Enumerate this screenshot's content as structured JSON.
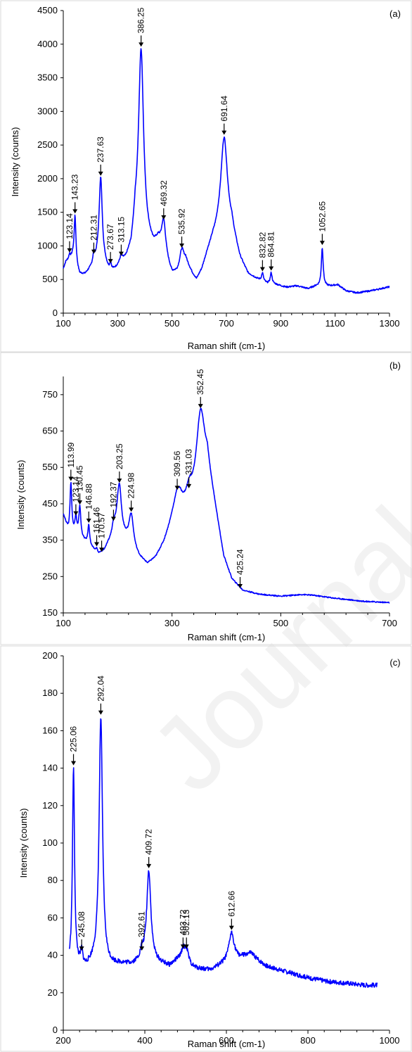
{
  "watermark": "Journal Pre-proof",
  "colors": {
    "series": "#0000ff",
    "axis": "#000000",
    "frame": "#d9d9d9"
  },
  "chart_data": [
    {
      "type": "line",
      "panel": "(a)",
      "xlabel": "Raman shift (cm-1)",
      "ylabel": "Intensity (counts)",
      "xlim": [
        100,
        1300
      ],
      "ylim": [
        0,
        4500
      ],
      "xticks": [
        100,
        300,
        500,
        700,
        900,
        1100,
        1300
      ],
      "yticks": [
        0,
        500,
        1000,
        1500,
        2000,
        2500,
        3000,
        3500,
        4000,
        4500
      ],
      "grid": false,
      "baseline": [
        [
          100,
          650
        ],
        [
          110,
          760
        ],
        [
          135,
          820
        ],
        [
          160,
          560
        ],
        [
          180,
          560
        ],
        [
          200,
          640
        ],
        [
          215,
          700
        ],
        [
          225,
          760
        ],
        [
          255,
          680
        ],
        [
          272,
          560
        ],
        [
          295,
          640
        ],
        [
          310,
          720
        ],
        [
          330,
          760
        ],
        [
          350,
          900
        ],
        [
          365,
          1300
        ],
        [
          410,
          1050
        ],
        [
          430,
          960
        ],
        [
          450,
          1030
        ],
        [
          500,
          560
        ],
        [
          520,
          580
        ],
        [
          550,
          760
        ],
        [
          575,
          560
        ],
        [
          590,
          470
        ],
        [
          610,
          620
        ],
        [
          630,
          870
        ],
        [
          650,
          1060
        ],
        [
          670,
          1160
        ],
        [
          720,
          1200
        ],
        [
          750,
          780
        ],
        [
          780,
          560
        ],
        [
          810,
          500
        ],
        [
          850,
          430
        ],
        [
          880,
          420
        ],
        [
          920,
          380
        ],
        [
          960,
          400
        ],
        [
          1000,
          360
        ],
        [
          1030,
          400
        ],
        [
          1080,
          400
        ],
        [
          1110,
          420
        ],
        [
          1140,
          330
        ],
        [
          1180,
          300
        ],
        [
          1230,
          330
        ],
        [
          1300,
          390
        ]
      ],
      "peaks": [
        {
          "label": "123.14",
          "x": 123.14,
          "y": 860,
          "w": 3
        },
        {
          "label": "143.23",
          "x": 143.23,
          "y": 1440,
          "w": 4
        },
        {
          "label": "212.31",
          "x": 212.31,
          "y": 840,
          "w": 4
        },
        {
          "label": "237.63",
          "x": 237.63,
          "y": 2000,
          "w": 7
        },
        {
          "label": "273.67",
          "x": 273.67,
          "y": 700,
          "w": 4
        },
        {
          "label": "313.15",
          "x": 313.15,
          "y": 810,
          "w": 4
        },
        {
          "label": "386.25",
          "x": 386.25,
          "y": 3920,
          "w": 11
        },
        {
          "label": "469.32",
          "x": 469.32,
          "y": 1350,
          "w": 9
        },
        {
          "label": "535.92",
          "x": 535.92,
          "y": 930,
          "w": 9
        },
        {
          "label": "691.64",
          "x": 691.64,
          "y": 2610,
          "w": 15
        },
        {
          "label": "832.82",
          "x": 832.82,
          "y": 580,
          "w": 4
        },
        {
          "label": "864.81",
          "x": 864.81,
          "y": 590,
          "w": 4
        },
        {
          "label": "1052.65",
          "x": 1052.65,
          "y": 970,
          "w": 4
        }
      ]
    },
    {
      "type": "line",
      "panel": "(b)",
      "xlabel": "Raman shift (cm-1)",
      "ylabel": "Intensity (counts)",
      "xlim": [
        100,
        700
      ],
      "ylim": [
        150,
        800
      ],
      "xticks": [
        100,
        300,
        500,
        700
      ],
      "yticks": [
        150,
        250,
        350,
        450,
        550,
        650,
        750
      ],
      "grid": false,
      "baseline": [
        [
          100,
          420
        ],
        [
          110,
          370
        ],
        [
          130,
          360
        ],
        [
          150,
          330
        ],
        [
          165,
          310
        ],
        [
          175,
          320
        ],
        [
          190,
          360
        ],
        [
          200,
          400
        ],
        [
          212,
          360
        ],
        [
          224,
          330
        ],
        [
          240,
          300
        ],
        [
          255,
          282
        ],
        [
          270,
          300
        ],
        [
          285,
          340
        ],
        [
          300,
          400
        ],
        [
          315,
          440
        ],
        [
          330,
          430
        ],
        [
          345,
          480
        ],
        [
          365,
          550
        ],
        [
          380,
          430
        ],
        [
          395,
          300
        ],
        [
          410,
          240
        ],
        [
          430,
          210
        ],
        [
          460,
          200
        ],
        [
          500,
          195
        ],
        [
          540,
          200
        ],
        [
          560,
          198
        ],
        [
          600,
          190
        ],
        [
          650,
          182
        ],
        [
          700,
          178
        ]
      ],
      "peaks": [
        {
          "label": "113.99",
          "x": 113.99,
          "y": 505,
          "w": 2
        },
        {
          "label": "123.14",
          "x": 123.14,
          "y": 410,
          "w": 2
        },
        {
          "label": "130.45",
          "x": 130.45,
          "y": 440,
          "w": 2
        },
        {
          "label": "146.88",
          "x": 146.88,
          "y": 390,
          "w": 2
        },
        {
          "label": "161.46",
          "x": 161.46,
          "y": 325,
          "w": 2
        },
        {
          "label": "170.57",
          "x": 170.57,
          "y": 310,
          "w": 2
        },
        {
          "label": "192.37",
          "x": 192.37,
          "y": 395,
          "w": 3
        },
        {
          "label": "203.25",
          "x": 203.25,
          "y": 500,
          "w": 4
        },
        {
          "label": "224.98",
          "x": 224.98,
          "y": 420,
          "w": 5
        },
        {
          "label": "309.56",
          "x": 309.56,
          "y": 480,
          "w": 8
        },
        {
          "label": "331.03",
          "x": 331.03,
          "y": 485,
          "w": 6
        },
        {
          "label": "352.45",
          "x": 352.45,
          "y": 705,
          "w": 9
        },
        {
          "label": "425.24",
          "x": 425.24,
          "y": 210,
          "w": 4
        }
      ]
    },
    {
      "type": "line",
      "panel": "(c)",
      "xlabel": "Raman shift (cm-1)",
      "ylabel": "Intensity (counts)",
      "xlim": [
        200,
        1000
      ],
      "ylim": [
        0,
        200
      ],
      "xticks": [
        200,
        400,
        600,
        800,
        1000
      ],
      "yticks": [
        0,
        20,
        40,
        60,
        80,
        100,
        120,
        140,
        160,
        180,
        200
      ],
      "grid": false,
      "baseline": [
        [
          215,
          34
        ],
        [
          235,
          34
        ],
        [
          255,
          33
        ],
        [
          275,
          36
        ],
        [
          310,
          34
        ],
        [
          340,
          35
        ],
        [
          370,
          35
        ],
        [
          400,
          38
        ],
        [
          430,
          36
        ],
        [
          460,
          34
        ],
        [
          480,
          37
        ],
        [
          520,
          33
        ],
        [
          560,
          32
        ],
        [
          590,
          35
        ],
        [
          630,
          38
        ],
        [
          660,
          41
        ],
        [
          680,
          37
        ],
        [
          700,
          34
        ],
        [
          750,
          31
        ],
        [
          800,
          28
        ],
        [
          850,
          26
        ],
        [
          900,
          25
        ],
        [
          940,
          24
        ],
        [
          970,
          24
        ]
      ],
      "peaks": [
        {
          "label": "225.06",
          "x": 225.06,
          "y": 140,
          "w": 3
        },
        {
          "label": "245.08",
          "x": 245.08,
          "y": 41,
          "w": 3
        },
        {
          "label": "292.04",
          "x": 292.04,
          "y": 167,
          "w": 5
        },
        {
          "label": "392.61",
          "x": 392.61,
          "y": 41,
          "w": 4
        },
        {
          "label": "409.72",
          "x": 409.72,
          "y": 85,
          "w": 6
        },
        {
          "label": "493.72",
          "x": 493.72,
          "y": 42,
          "w": 6
        },
        {
          "label": "502.13",
          "x": 502.13,
          "y": 42,
          "w": 6
        },
        {
          "label": "612.66",
          "x": 612.66,
          "y": 52,
          "w": 8
        }
      ]
    }
  ]
}
